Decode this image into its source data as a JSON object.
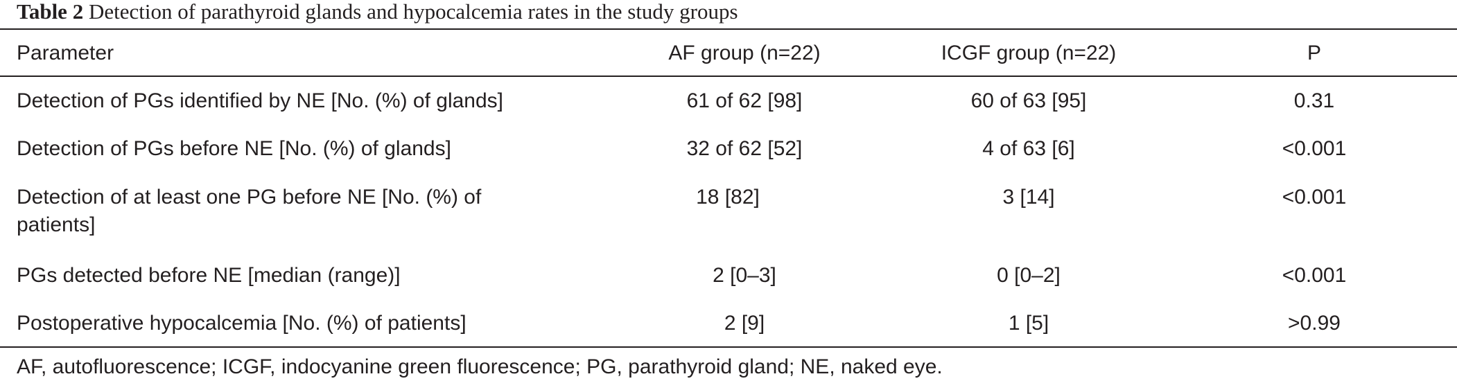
{
  "caption": {
    "label": "Table 2",
    "text": "Detection of parathyroid glands and hypocalcemia rates in the study groups"
  },
  "table": {
    "headers": [
      "Parameter",
      "AF group (n=22)",
      "ICGF group (n=22)",
      "P"
    ],
    "rows": [
      [
        "Detection of PGs identified by NE [No. (%) of glands]",
        "61 of 62 [98]",
        "60 of 63 [95]",
        "0.31"
      ],
      [
        "Detection of PGs before NE [No. (%) of glands]",
        "32 of 62 [52]",
        "4 of 63 [6]",
        "<0.001"
      ],
      [
        "Detection of at least one PG before NE [No. (%) of patients]",
        "18 [82]",
        "3 [14]",
        "<0.001"
      ],
      [
        "PGs detected before NE [median (range)]",
        "2 [0–3]",
        "0 [0–2]",
        "<0.001"
      ],
      [
        "Postoperative hypocalcemia [No. (%) of patients]",
        "2 [9]",
        "1 [5]",
        ">0.99"
      ]
    ]
  },
  "footnote": "AF, autofluorescence; ICGF, indocyanine green fluorescence; PG, parathyroid gland; NE, naked eye."
}
